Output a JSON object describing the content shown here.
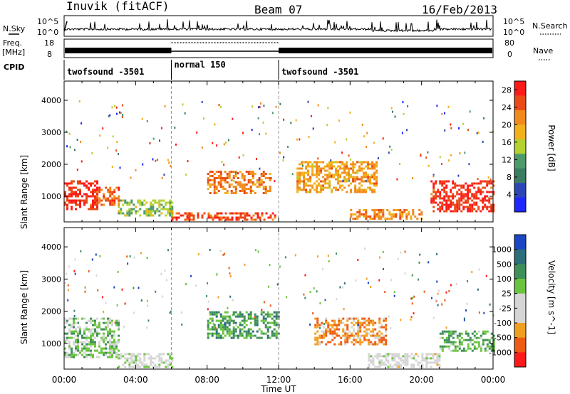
{
  "header": {
    "station": "Inuvik (fitACF)",
    "beam": "Beam 07",
    "date": "16/Feb/2013"
  },
  "left_labels": {
    "nsky": "N.Sky",
    "freq_line1": "Freq.",
    "freq_line2": "[MHz]",
    "cpid": "CPID"
  },
  "right_labels": {
    "nsearch": "N.Search",
    "nave": "Nave"
  },
  "noise_panel": {
    "left_ticks": [
      "10^5",
      "10^0"
    ],
    "right_ticks": [
      "10^5",
      "10^0"
    ]
  },
  "freq_panel": {
    "left_ticks": [
      "18",
      "8"
    ],
    "right_ticks": [
      "80",
      "0"
    ]
  },
  "cpid_segments": [
    {
      "label": "twofsound -3501",
      "start_h": 0,
      "end_h": 6
    },
    {
      "label": "normal 150",
      "start_h": 6,
      "end_h": 12
    },
    {
      "label": "twofsound -3501",
      "start_h": 12,
      "end_h": 24
    }
  ],
  "colors": {
    "power_scale": [
      "#1f27ff",
      "#2c46b8",
      "#3a7d62",
      "#4e9a6b",
      "#b5d12f",
      "#f2b01a",
      "#f18a1c",
      "#ea4b16",
      "#ff1a1a"
    ],
    "velocity_scale": [
      "#ff1a1a",
      "#ee5b15",
      "#f0a020",
      "#d5d5d5",
      "#d5d5d5",
      "#6bc43f",
      "#3f8f58",
      "#2c6e7a",
      "#1b46c4"
    ]
  },
  "chart_data": [
    {
      "type": "heatmap",
      "panel": "power",
      "ylabel": "Slant Range [km]",
      "xlabel": "Time UT",
      "x_ticks": [
        "00:00",
        "04:00",
        "08:00",
        "12:00",
        "16:00",
        "20:00",
        "00:00"
      ],
      "y_ticks": [
        "1000",
        "2000",
        "3000",
        "4000"
      ],
      "xlim": [
        0,
        24
      ],
      "ylim": [
        200,
        4600
      ],
      "colorbar": {
        "label": "Power [dB]",
        "ticks": [
          "4",
          "8",
          "12",
          "16",
          "20",
          "24",
          "28"
        ],
        "range": [
          0,
          30
        ]
      },
      "regions": [
        {
          "t0": 0.0,
          "t1": 1.8,
          "r0": 600,
          "r1": 1500,
          "value": 27
        },
        {
          "t0": 1.8,
          "t1": 3.0,
          "r0": 700,
          "r1": 1300,
          "value": 24
        },
        {
          "t0": 3.0,
          "t1": 6.0,
          "r0": 400,
          "r1": 900,
          "value": 14
        },
        {
          "t0": 6.0,
          "t1": 11.8,
          "r0": 250,
          "r1": 500,
          "value": 25
        },
        {
          "t0": 8.0,
          "t1": 11.5,
          "r0": 1100,
          "r1": 1800,
          "value": 22
        },
        {
          "t0": 13.0,
          "t1": 17.5,
          "r0": 1100,
          "r1": 2100,
          "value": 20
        },
        {
          "t0": 16.0,
          "t1": 20.0,
          "r0": 300,
          "r1": 600,
          "value": 22
        },
        {
          "t0": 20.5,
          "t1": 24.0,
          "r0": 500,
          "r1": 1500,
          "value": 27
        }
      ]
    },
    {
      "type": "heatmap",
      "panel": "velocity",
      "ylabel": "Slant Range [km]",
      "xlabel": "Time UT",
      "x_ticks": [
        "00:00",
        "04:00",
        "08:00",
        "12:00",
        "16:00",
        "20:00",
        "00:00"
      ],
      "y_ticks": [
        "1000",
        "2000",
        "3000",
        "4000"
      ],
      "xlim": [
        0,
        24
      ],
      "ylim": [
        200,
        4600
      ],
      "colorbar": {
        "label": "Velocity [m s^-1]",
        "ticks": [
          "1000",
          "500",
          "100",
          "25",
          "-25",
          "-100",
          "-500",
          "-1000"
        ],
        "range": [
          -1000,
          1000
        ]
      },
      "regions": [
        {
          "t0": 0.0,
          "t1": 3.0,
          "r0": 600,
          "r1": 1800,
          "value": 200
        },
        {
          "t0": 3.0,
          "t1": 6.0,
          "r0": 300,
          "r1": 700,
          "value": 0
        },
        {
          "t0": 8.0,
          "t1": 12.0,
          "r0": 1200,
          "r1": 2000,
          "value": 400
        },
        {
          "t0": 14.0,
          "t1": 18.0,
          "r0": 1000,
          "r1": 1800,
          "value": -500
        },
        {
          "t0": 17.0,
          "t1": 21.0,
          "r0": 300,
          "r1": 700,
          "value": -100
        },
        {
          "t0": 21.0,
          "t1": 24.0,
          "r0": 800,
          "r1": 1400,
          "value": 300
        }
      ]
    }
  ]
}
